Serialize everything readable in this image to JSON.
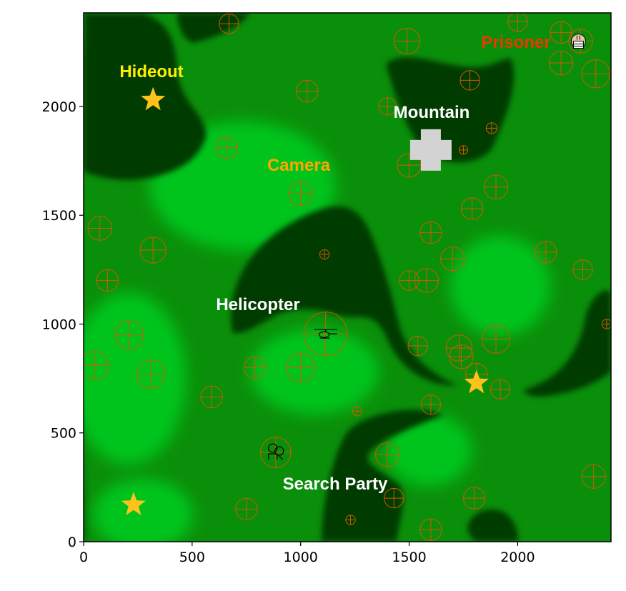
{
  "map": {
    "x_range": [
      0,
      2430
    ],
    "y_range": [
      0,
      2430
    ],
    "x_ticks": [
      0,
      500,
      1000,
      1500,
      2000
    ],
    "y_ticks": [
      0,
      500,
      1000,
      1500,
      2000
    ],
    "x_tick_labels": [
      "0",
      "500",
      "1000",
      "1500",
      "2000"
    ],
    "y_tick_labels": [
      "0",
      "500",
      "1000",
      "1500",
      "2000"
    ]
  },
  "colors": {
    "dark_zone": "#003b00",
    "mid_green": "#0a8f0a",
    "bright_green": "#00c41c",
    "target": "#d05a00",
    "star": "#ffc21a",
    "mountain": "#d3d3d3"
  },
  "labels": {
    "hideout": "Hideout",
    "prisoner": "Prisoner",
    "mountain": "Mountain",
    "camera": "Camera",
    "helicopter": "Helicopter",
    "search_party": "Search Party"
  },
  "label_colors": {
    "hideout": "#ffee00",
    "prisoner": "#e83a00",
    "mountain": "#ffffff",
    "camera": "#ffa500",
    "helicopter": "#ffffff",
    "search_party": "#ffffff"
  },
  "agents": {
    "prisoner": {
      "x": 2280,
      "y": 2300,
      "icon": "prisoner-icon"
    },
    "helicopter": {
      "x": 1115,
      "y": 955,
      "icon": "helicopter-icon"
    },
    "search_party": {
      "x": 885,
      "y": 410,
      "icon": "search-party-icon"
    }
  },
  "mountain": {
    "x": 1600,
    "y": 1800
  },
  "stars": [
    {
      "x": 320,
      "y": 2030
    },
    {
      "x": 1810,
      "y": 730
    },
    {
      "x": 230,
      "y": 170
    }
  ],
  "cameras": [
    {
      "x": 670,
      "y": 2380,
      "r": 45
    },
    {
      "x": 2000,
      "y": 2390,
      "r": 45
    },
    {
      "x": 1490,
      "y": 2300,
      "r": 60
    },
    {
      "x": 2200,
      "y": 2340,
      "r": 50
    },
    {
      "x": 2290,
      "y": 2300,
      "r": 55
    },
    {
      "x": 2200,
      "y": 2200,
      "r": 55
    },
    {
      "x": 2360,
      "y": 2150,
      "r": 65
    },
    {
      "x": 1780,
      "y": 2120,
      "r": 45
    },
    {
      "x": 1030,
      "y": 2070,
      "r": 50
    },
    {
      "x": 1400,
      "y": 2000,
      "r": 40
    },
    {
      "x": 1880,
      "y": 1900,
      "r": 25
    },
    {
      "x": 660,
      "y": 1810,
      "r": 50
    },
    {
      "x": 1750,
      "y": 1800,
      "r": 20
    },
    {
      "x": 1500,
      "y": 1730,
      "r": 55
    },
    {
      "x": 1900,
      "y": 1630,
      "r": 55
    },
    {
      "x": 1000,
      "y": 1600,
      "r": 55
    },
    {
      "x": 1790,
      "y": 1530,
      "r": 50
    },
    {
      "x": 75,
      "y": 1440,
      "r": 55
    },
    {
      "x": 1600,
      "y": 1420,
      "r": 50
    },
    {
      "x": 320,
      "y": 1340,
      "r": 60
    },
    {
      "x": 2130,
      "y": 1330,
      "r": 50
    },
    {
      "x": 1110,
      "y": 1320,
      "r": 22
    },
    {
      "x": 1700,
      "y": 1300,
      "r": 55
    },
    {
      "x": 2300,
      "y": 1250,
      "r": 45
    },
    {
      "x": 110,
      "y": 1200,
      "r": 50
    },
    {
      "x": 1500,
      "y": 1200,
      "r": 45
    },
    {
      "x": 1580,
      "y": 1200,
      "r": 55
    },
    {
      "x": 1115,
      "y": 955,
      "r": 100
    },
    {
      "x": 2410,
      "y": 1000,
      "r": 22
    },
    {
      "x": 210,
      "y": 950,
      "r": 65
    },
    {
      "x": 1900,
      "y": 930,
      "r": 65
    },
    {
      "x": 1540,
      "y": 900,
      "r": 45
    },
    {
      "x": 1730,
      "y": 890,
      "r": 60
    },
    {
      "x": 1740,
      "y": 850,
      "r": 55
    },
    {
      "x": 50,
      "y": 810,
      "r": 65
    },
    {
      "x": 790,
      "y": 800,
      "r": 50
    },
    {
      "x": 1000,
      "y": 800,
      "r": 65
    },
    {
      "x": 310,
      "y": 770,
      "r": 65
    },
    {
      "x": 1810,
      "y": 770,
      "r": 50
    },
    {
      "x": 1920,
      "y": 700,
      "r": 45
    },
    {
      "x": 590,
      "y": 665,
      "r": 50
    },
    {
      "x": 1600,
      "y": 630,
      "r": 45
    },
    {
      "x": 1260,
      "y": 600,
      "r": 22
    },
    {
      "x": 885,
      "y": 410,
      "r": 70
    },
    {
      "x": 1400,
      "y": 400,
      "r": 55
    },
    {
      "x": 2350,
      "y": 300,
      "r": 55
    },
    {
      "x": 1430,
      "y": 200,
      "r": 45
    },
    {
      "x": 1800,
      "y": 200,
      "r": 50
    },
    {
      "x": 750,
      "y": 150,
      "r": 50
    },
    {
      "x": 1230,
      "y": 100,
      "r": 22
    },
    {
      "x": 1600,
      "y": 55,
      "r": 50
    }
  ]
}
